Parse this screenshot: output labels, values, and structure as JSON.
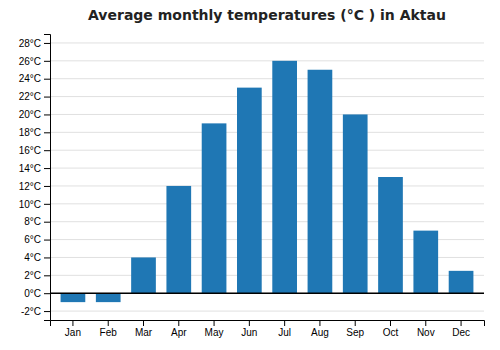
{
  "chart_data": {
    "type": "bar",
    "title": "Average monthly temperatures (°C ) in Aktau",
    "categories": [
      "Jan",
      "Feb",
      "Mar",
      "Apr",
      "May",
      "Jun",
      "Jul",
      "Aug",
      "Sep",
      "Oct",
      "Nov",
      "Dec"
    ],
    "values": [
      -1,
      -1,
      4,
      12,
      19,
      23,
      26,
      25,
      20,
      13,
      7,
      2.5
    ],
    "ylim": [
      -3,
      29
    ],
    "yticks": [
      {
        "value": -2,
        "label": "-2°C"
      },
      {
        "value": 0,
        "label": "0°C"
      },
      {
        "value": 2,
        "label": "2°C"
      },
      {
        "value": 4,
        "label": "4°C"
      },
      {
        "value": 6,
        "label": "6°C"
      },
      {
        "value": 8,
        "label": "8°C"
      },
      {
        "value": 10,
        "label": "10°C"
      },
      {
        "value": 12,
        "label": "12°C"
      },
      {
        "value": 14,
        "label": "14°C"
      },
      {
        "value": 16,
        "label": "16°C"
      },
      {
        "value": 18,
        "label": "18°C"
      },
      {
        "value": 20,
        "label": "20°C"
      },
      {
        "value": 22,
        "label": "22°C"
      },
      {
        "value": 24,
        "label": "24°C"
      },
      {
        "value": 26,
        "label": "26°C"
      },
      {
        "value": 28,
        "label": "28°C"
      }
    ],
    "grid": true
  }
}
